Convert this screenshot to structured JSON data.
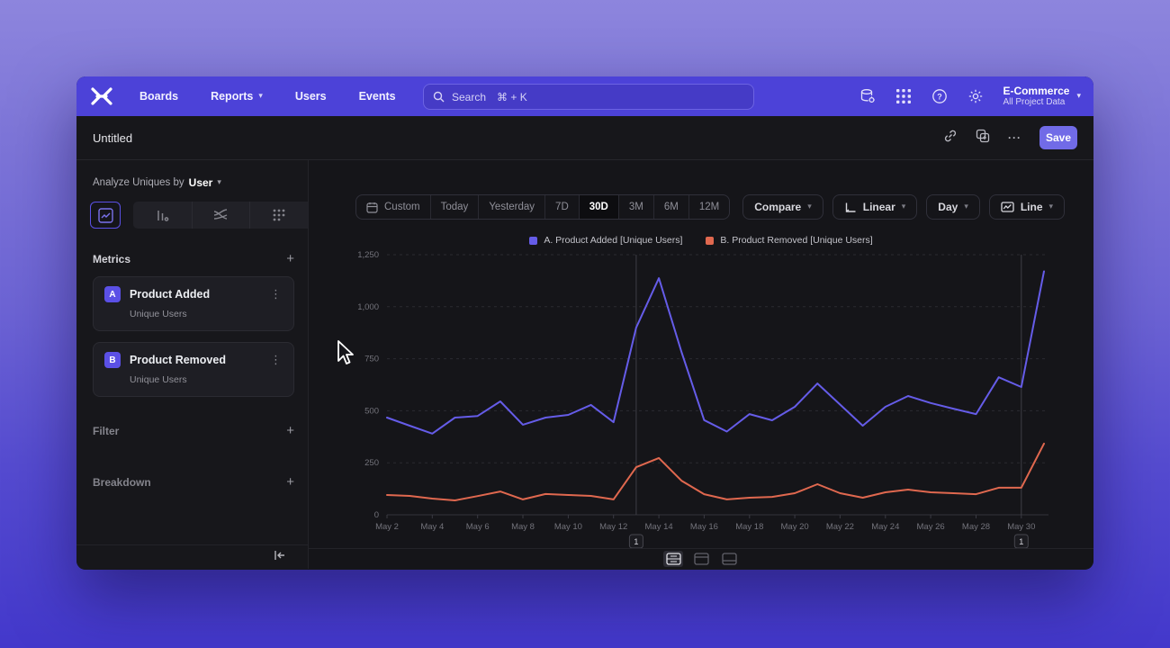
{
  "navbar": {
    "items": [
      {
        "label": "Boards"
      },
      {
        "label": "Reports",
        "has_chevron": true
      },
      {
        "label": "Users"
      },
      {
        "label": "Events"
      }
    ],
    "search_label": "Search",
    "search_shortcut": "⌘ + K",
    "project": {
      "name": "E-Commerce",
      "subtitle": "All Project Data"
    }
  },
  "header": {
    "title": "Untitled",
    "save_label": "Save",
    "more_label": "···"
  },
  "sidebar": {
    "analyze_prefix": "Analyze Uniques by",
    "analyze_value": "User",
    "metrics_title": "Metrics",
    "metrics": [
      {
        "badge": "A",
        "name": "Product Added",
        "subtitle": "Unique Users"
      },
      {
        "badge": "B",
        "name": "Product Removed",
        "subtitle": "Unique Users"
      }
    ],
    "filter_label": "Filter",
    "breakdown_label": "Breakdown",
    "add_symbol": "+"
  },
  "toolbar": {
    "ranges": [
      "Custom",
      "Today",
      "Yesterday",
      "7D",
      "30D",
      "3M",
      "6M",
      "12M"
    ],
    "selected_range": "30D",
    "compare_label": "Compare",
    "scale_label": "Linear",
    "interval_label": "Day",
    "chart_type_label": "Line"
  },
  "legend": {
    "items": [
      {
        "label": "A. Product Added [Unique Users]",
        "color": "#655ce8"
      },
      {
        "label": "B. Product Removed [Unique Users]",
        "color": "#e0684f"
      }
    ]
  },
  "chart_data": {
    "type": "line",
    "x": [
      "May 2",
      "May 3",
      "May 4",
      "May 5",
      "May 6",
      "May 7",
      "May 8",
      "May 9",
      "May 10",
      "May 11",
      "May 12",
      "May 13",
      "May 14",
      "May 15",
      "May 16",
      "May 17",
      "May 18",
      "May 19",
      "May 20",
      "May 21",
      "May 22",
      "May 23",
      "May 24",
      "May 25",
      "May 26",
      "May 27",
      "May 28",
      "May 29",
      "May 30",
      "May 31"
    ],
    "x_tick_step": 2,
    "series": [
      {
        "name": "A. Product Added [Unique Users]",
        "color": "#655ce8",
        "values": [
          467,
          428,
          390,
          467,
          475,
          545,
          433,
          467,
          480,
          528,
          445,
          900,
          1137,
          783,
          455,
          400,
          484,
          454,
          519,
          631,
          530,
          428,
          519,
          571,
          537,
          510,
          484,
          661,
          614,
          1170
        ]
      },
      {
        "name": "B. Product Removed [Unique Users]",
        "color": "#e0684f",
        "values": [
          95,
          91,
          78,
          69,
          90,
          112,
          74,
          100,
          95,
          91,
          74,
          229,
          273,
          164,
          99,
          74,
          82,
          86,
          104,
          147,
          104,
          82,
          108,
          121,
          108,
          104,
          99,
          130,
          130,
          342
        ]
      }
    ],
    "ylim": [
      0,
      1250
    ],
    "yticks": [
      0,
      250,
      500,
      750,
      1000,
      1250
    ],
    "ytick_labels": [
      "0",
      "250",
      "500",
      "750",
      "1,000",
      "1,250"
    ],
    "grid": "horizontal-dashed",
    "legend_position": "top-center"
  },
  "annotations": [
    {
      "label": "1",
      "index": 11
    },
    {
      "label": "1",
      "index": 28
    }
  ],
  "colors": {
    "navbar": "#4c42d8",
    "accent": "#5b50e6",
    "save_button": "#716be7",
    "app_bg": "#17171b",
    "series_a": "#655ce8",
    "series_b": "#e0684f"
  }
}
